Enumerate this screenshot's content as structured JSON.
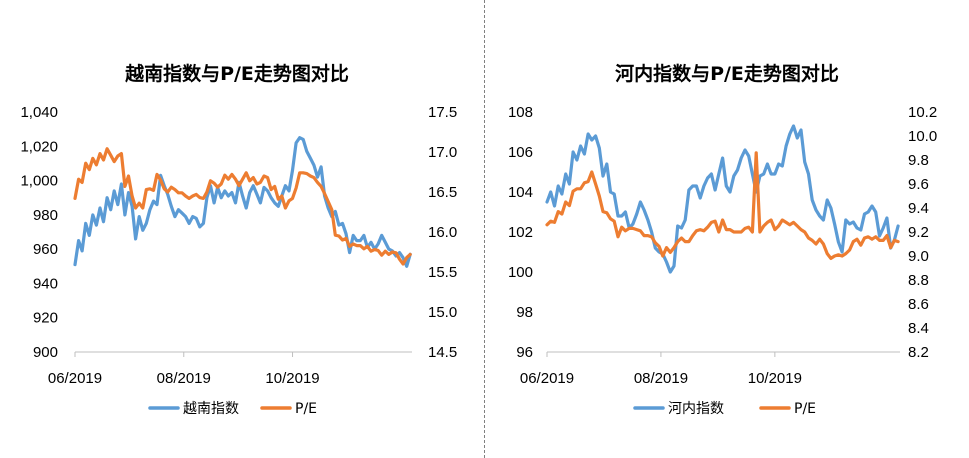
{
  "colors": {
    "index": "#5b9bd5",
    "pe": "#ed7d31",
    "axis": "#bfbfbf"
  },
  "chart_data": [
    {
      "type": "line",
      "title": "越南指数与P/E走势图对比",
      "xlabel": "",
      "ylabel": "",
      "y2label": "",
      "x_tick_labels": [
        "06/2019",
        "08/2019",
        "10/2019"
      ],
      "x_range": [
        "2019-06-01",
        "2019-12-07"
      ],
      "x_ticks": [
        "2019-06-01",
        "2019-08-01",
        "2019-10-01"
      ],
      "ylim": [
        900,
        1040
      ],
      "y_ticks": [
        "900",
        "920",
        "940",
        "960",
        "980",
        "1,000",
        "1,020",
        "1,040"
      ],
      "y2lim": [
        14.5,
        17.5
      ],
      "y2_ticks": [
        "14.5",
        "15.0",
        "15.5",
        "16.0",
        "16.5",
        "17.0",
        "17.5"
      ],
      "legend_position": "bottom",
      "grid": false,
      "series": [
        {
          "name": "越南指数",
          "axis": "left",
          "x": [
            "2019-06-01",
            "2019-06-03",
            "2019-06-05",
            "2019-06-07",
            "2019-06-09",
            "2019-06-11",
            "2019-06-13",
            "2019-06-15",
            "2019-06-17",
            "2019-06-19",
            "2019-06-21",
            "2019-06-23",
            "2019-06-25",
            "2019-06-27",
            "2019-06-29",
            "2019-07-01",
            "2019-07-03",
            "2019-07-05",
            "2019-07-07",
            "2019-07-09",
            "2019-07-11",
            "2019-07-13",
            "2019-07-15",
            "2019-07-17",
            "2019-07-19",
            "2019-07-21",
            "2019-07-23",
            "2019-07-25",
            "2019-07-27",
            "2019-07-29",
            "2019-07-31",
            "2019-08-02",
            "2019-08-04",
            "2019-08-06",
            "2019-08-08",
            "2019-08-10",
            "2019-08-12",
            "2019-08-14",
            "2019-08-16",
            "2019-08-18",
            "2019-08-20",
            "2019-08-22",
            "2019-08-24",
            "2019-08-26",
            "2019-08-28",
            "2019-08-30",
            "2019-09-01",
            "2019-09-03",
            "2019-09-05",
            "2019-09-07",
            "2019-09-09",
            "2019-09-11",
            "2019-09-13",
            "2019-09-15",
            "2019-09-17",
            "2019-09-19",
            "2019-09-21",
            "2019-09-23",
            "2019-09-25",
            "2019-09-27",
            "2019-09-29",
            "2019-10-01",
            "2019-10-03",
            "2019-10-05",
            "2019-10-07",
            "2019-10-09",
            "2019-10-11",
            "2019-10-13",
            "2019-10-15",
            "2019-10-17",
            "2019-10-19",
            "2019-10-21",
            "2019-10-23",
            "2019-10-25",
            "2019-10-27",
            "2019-10-29",
            "2019-10-31",
            "2019-11-02",
            "2019-11-04",
            "2019-11-06",
            "2019-11-08",
            "2019-11-10",
            "2019-11-12",
            "2019-11-14",
            "2019-11-16",
            "2019-11-18",
            "2019-11-20",
            "2019-11-22",
            "2019-11-24",
            "2019-11-26",
            "2019-11-28",
            "2019-11-30",
            "2019-12-02",
            "2019-12-04",
            "2019-12-06"
          ],
          "values": [
            951,
            965,
            959,
            975,
            968,
            980,
            974,
            984,
            976,
            990,
            983,
            994,
            986,
            998,
            980,
            993,
            985,
            966,
            979,
            971,
            975,
            983,
            988,
            986,
            1003,
            997,
            992,
            985,
            979,
            983,
            981,
            979,
            975,
            979,
            978,
            973,
            975,
            990,
            997,
            987,
            996,
            990,
            994,
            991,
            993,
            987,
            999,
            991,
            984,
            993,
            997,
            992,
            987,
            996,
            994,
            990,
            987,
            985,
            991,
            997,
            994,
            1006,
            1022,
            1025,
            1024,
            1017,
            1013,
            1009,
            1002,
            1008,
            991,
            984,
            979,
            982,
            974,
            975,
            969,
            958,
            968,
            965,
            965,
            968,
            961,
            964,
            960,
            963,
            968,
            964,
            960,
            959,
            956,
            958,
            955,
            950,
            957
          ]
        },
        {
          "name": "P/E",
          "axis": "right",
          "x": [
            "2019-06-01",
            "2019-06-03",
            "2019-06-05",
            "2019-06-07",
            "2019-06-09",
            "2019-06-11",
            "2019-06-13",
            "2019-06-15",
            "2019-06-17",
            "2019-06-19",
            "2019-06-21",
            "2019-06-23",
            "2019-06-25",
            "2019-06-27",
            "2019-06-29",
            "2019-07-01",
            "2019-07-03",
            "2019-07-05",
            "2019-07-07",
            "2019-07-09",
            "2019-07-11",
            "2019-07-13",
            "2019-07-15",
            "2019-07-17",
            "2019-07-19",
            "2019-07-21",
            "2019-07-23",
            "2019-07-25",
            "2019-07-27",
            "2019-07-29",
            "2019-07-31",
            "2019-08-02",
            "2019-08-04",
            "2019-08-06",
            "2019-08-08",
            "2019-08-10",
            "2019-08-12",
            "2019-08-14",
            "2019-08-16",
            "2019-08-18",
            "2019-08-20",
            "2019-08-22",
            "2019-08-24",
            "2019-08-26",
            "2019-08-28",
            "2019-08-30",
            "2019-09-01",
            "2019-09-03",
            "2019-09-05",
            "2019-09-07",
            "2019-09-09",
            "2019-09-11",
            "2019-09-13",
            "2019-09-15",
            "2019-09-17",
            "2019-09-19",
            "2019-09-21",
            "2019-09-23",
            "2019-09-25",
            "2019-09-27",
            "2019-09-29",
            "2019-10-01",
            "2019-10-03",
            "2019-10-05",
            "2019-10-07",
            "2019-10-09",
            "2019-10-11",
            "2019-10-13",
            "2019-10-15",
            "2019-10-17",
            "2019-10-19",
            "2019-10-21",
            "2019-10-23",
            "2019-10-25",
            "2019-10-27",
            "2019-10-29",
            "2019-10-31",
            "2019-11-02",
            "2019-11-04",
            "2019-11-06",
            "2019-11-08",
            "2019-11-10",
            "2019-11-12",
            "2019-11-14",
            "2019-11-16",
            "2019-11-18",
            "2019-11-20",
            "2019-11-22",
            "2019-11-24",
            "2019-11-26",
            "2019-11-28",
            "2019-11-30",
            "2019-12-02",
            "2019-12-04",
            "2019-12-06"
          ],
          "values": [
            16.42,
            16.66,
            16.62,
            16.86,
            16.78,
            16.92,
            16.84,
            16.98,
            16.9,
            17.04,
            16.96,
            16.88,
            16.95,
            16.98,
            16.57,
            16.7,
            16.45,
            16.3,
            16.36,
            16.3,
            16.53,
            16.54,
            16.52,
            16.72,
            16.65,
            16.54,
            16.5,
            16.56,
            16.53,
            16.49,
            16.49,
            16.45,
            16.42,
            16.45,
            16.47,
            16.43,
            16.42,
            16.5,
            16.64,
            16.61,
            16.56,
            16.6,
            16.71,
            16.66,
            16.72,
            16.66,
            16.58,
            16.66,
            16.74,
            16.64,
            16.68,
            16.6,
            16.62,
            16.7,
            16.68,
            16.53,
            16.57,
            16.41,
            16.45,
            16.3,
            16.39,
            16.42,
            16.55,
            16.74,
            16.74,
            16.73,
            16.7,
            16.68,
            16.62,
            16.57,
            16.48,
            16.38,
            16.28,
            15.96,
            15.95,
            15.9,
            15.92,
            15.82,
            15.85,
            15.83,
            15.83,
            15.79,
            15.82,
            15.76,
            15.78,
            15.77,
            15.71,
            15.76,
            15.72,
            15.75,
            15.74,
            15.66,
            15.6,
            15.68,
            15.72
          ]
        }
      ]
    },
    {
      "type": "line",
      "title": "河内指数与P/E走势图对比",
      "xlabel": "",
      "ylabel": "",
      "y2label": "",
      "x_tick_labels": [
        "06/2019",
        "08/2019",
        "10/2019"
      ],
      "x_range": [
        "2019-06-01",
        "2019-12-07"
      ],
      "x_ticks": [
        "2019-06-01",
        "2019-08-01",
        "2019-10-01"
      ],
      "ylim": [
        96,
        108
      ],
      "y_ticks": [
        "96",
        "98",
        "100",
        "102",
        "104",
        "106",
        "108"
      ],
      "y2lim": [
        8.2,
        10.2
      ],
      "y2_ticks": [
        "8.2",
        "8.4",
        "8.6",
        "8.8",
        "9.0",
        "9.2",
        "9.4",
        "9.6",
        "9.8",
        "10.0",
        "10.2"
      ],
      "legend_position": "bottom",
      "grid": false,
      "series": [
        {
          "name": "河内指数",
          "axis": "left",
          "x": [
            "2019-06-01",
            "2019-06-03",
            "2019-06-05",
            "2019-06-07",
            "2019-06-09",
            "2019-06-11",
            "2019-06-13",
            "2019-06-15",
            "2019-06-17",
            "2019-06-19",
            "2019-06-21",
            "2019-06-23",
            "2019-06-25",
            "2019-06-27",
            "2019-06-29",
            "2019-07-01",
            "2019-07-03",
            "2019-07-05",
            "2019-07-07",
            "2019-07-09",
            "2019-07-11",
            "2019-07-13",
            "2019-07-15",
            "2019-07-17",
            "2019-07-19",
            "2019-07-21",
            "2019-07-23",
            "2019-07-25",
            "2019-07-27",
            "2019-07-29",
            "2019-07-31",
            "2019-08-02",
            "2019-08-04",
            "2019-08-06",
            "2019-08-08",
            "2019-08-10",
            "2019-08-12",
            "2019-08-14",
            "2019-08-16",
            "2019-08-18",
            "2019-08-20",
            "2019-08-22",
            "2019-08-24",
            "2019-08-26",
            "2019-08-28",
            "2019-08-30",
            "2019-09-01",
            "2019-09-03",
            "2019-09-05",
            "2019-09-07",
            "2019-09-09",
            "2019-09-11",
            "2019-09-13",
            "2019-09-15",
            "2019-09-17",
            "2019-09-19",
            "2019-09-21",
            "2019-09-23",
            "2019-09-25",
            "2019-09-27",
            "2019-09-29",
            "2019-10-01",
            "2019-10-03",
            "2019-10-05",
            "2019-10-07",
            "2019-10-09",
            "2019-10-11",
            "2019-10-13",
            "2019-10-15",
            "2019-10-17",
            "2019-10-19",
            "2019-10-21",
            "2019-10-23",
            "2019-10-25",
            "2019-10-27",
            "2019-10-29",
            "2019-10-31",
            "2019-11-02",
            "2019-11-04",
            "2019-11-06",
            "2019-11-08",
            "2019-11-10",
            "2019-11-12",
            "2019-11-14",
            "2019-11-16",
            "2019-11-18",
            "2019-11-20",
            "2019-11-22",
            "2019-11-24",
            "2019-11-26",
            "2019-11-28",
            "2019-11-30",
            "2019-12-02",
            "2019-12-04",
            "2019-12-06"
          ],
          "values": [
            103.5,
            104.0,
            103.3,
            104.3,
            103.9,
            104.9,
            104.4,
            106.0,
            105.6,
            106.3,
            105.9,
            106.9,
            106.6,
            106.8,
            106.2,
            104.8,
            105.4,
            104.0,
            103.9,
            102.8,
            102.8,
            103.0,
            102.2,
            102.4,
            102.9,
            103.5,
            103.1,
            102.6,
            102.0,
            101.2,
            101.0,
            100.9,
            100.5,
            100.0,
            100.3,
            102.3,
            102.2,
            102.6,
            104.1,
            104.3,
            104.3,
            103.7,
            104.3,
            104.7,
            104.9,
            104.1,
            104.9,
            105.7,
            104.3,
            104.0,
            104.8,
            105.1,
            105.7,
            106.1,
            105.8,
            104.9,
            104.0,
            104.8,
            104.9,
            105.4,
            104.9,
            104.9,
            105.4,
            105.3,
            106.3,
            106.9,
            107.3,
            106.7,
            107.1,
            105.5,
            104.9,
            103.6,
            103.1,
            102.8,
            102.6,
            103.6,
            103.2,
            102.4,
            101.5,
            101.0,
            102.6,
            102.4,
            102.5,
            102.2,
            102.1,
            102.9,
            103.0,
            103.3,
            103.0,
            101.8,
            102.2,
            102.7,
            101.2,
            101.6,
            102.3
          ]
        },
        {
          "name": "P/E",
          "axis": "right",
          "x": [
            "2019-06-01",
            "2019-06-03",
            "2019-06-05",
            "2019-06-07",
            "2019-06-09",
            "2019-06-11",
            "2019-06-13",
            "2019-06-15",
            "2019-06-17",
            "2019-06-19",
            "2019-06-21",
            "2019-06-23",
            "2019-06-25",
            "2019-06-27",
            "2019-06-29",
            "2019-07-01",
            "2019-07-03",
            "2019-07-05",
            "2019-07-07",
            "2019-07-09",
            "2019-07-11",
            "2019-07-13",
            "2019-07-15",
            "2019-07-17",
            "2019-07-19",
            "2019-07-21",
            "2019-07-23",
            "2019-07-25",
            "2019-07-27",
            "2019-07-29",
            "2019-07-31",
            "2019-08-02",
            "2019-08-04",
            "2019-08-06",
            "2019-08-08",
            "2019-08-10",
            "2019-08-12",
            "2019-08-14",
            "2019-08-16",
            "2019-08-18",
            "2019-08-20",
            "2019-08-22",
            "2019-08-24",
            "2019-08-26",
            "2019-08-28",
            "2019-08-30",
            "2019-09-01",
            "2019-09-03",
            "2019-09-05",
            "2019-09-07",
            "2019-09-09",
            "2019-09-11",
            "2019-09-13",
            "2019-09-15",
            "2019-09-17",
            "2019-09-19",
            "2019-09-21",
            "2019-09-23",
            "2019-09-25",
            "2019-09-27",
            "2019-09-29",
            "2019-10-01",
            "2019-10-03",
            "2019-10-05",
            "2019-10-07",
            "2019-10-09",
            "2019-10-11",
            "2019-10-13",
            "2019-10-15",
            "2019-10-17",
            "2019-10-19",
            "2019-10-21",
            "2019-10-23",
            "2019-10-25",
            "2019-10-27",
            "2019-10-29",
            "2019-10-31",
            "2019-11-02",
            "2019-11-04",
            "2019-11-06",
            "2019-11-08",
            "2019-11-10",
            "2019-11-12",
            "2019-11-14",
            "2019-11-16",
            "2019-11-18",
            "2019-11-20",
            "2019-11-22",
            "2019-11-24",
            "2019-11-26",
            "2019-11-28",
            "2019-11-30",
            "2019-12-02",
            "2019-12-04",
            "2019-12-06"
          ],
          "values": [
            9.26,
            9.29,
            9.28,
            9.37,
            9.35,
            9.45,
            9.42,
            9.54,
            9.56,
            9.56,
            9.61,
            9.62,
            9.7,
            9.6,
            9.5,
            9.37,
            9.36,
            9.31,
            9.29,
            9.16,
            9.24,
            9.21,
            9.23,
            9.23,
            9.22,
            9.21,
            9.17,
            9.17,
            9.16,
            9.11,
            9.08,
            9.0,
            9.07,
            9.03,
            9.07,
            9.12,
            9.15,
            9.12,
            9.12,
            9.17,
            9.21,
            9.22,
            9.21,
            9.24,
            9.28,
            9.29,
            9.2,
            9.3,
            9.22,
            9.22,
            9.2,
            9.2,
            9.2,
            9.23,
            9.24,
            9.2,
            9.86,
            9.2,
            9.25,
            9.28,
            9.3,
            9.22,
            9.25,
            9.3,
            9.28,
            9.26,
            9.28,
            9.25,
            9.22,
            9.2,
            9.15,
            9.13,
            9.1,
            9.14,
            9.1,
            9.02,
            8.98,
            9.0,
            9.01,
            9.0,
            9.02,
            9.05,
            9.12,
            9.14,
            9.09,
            9.15,
            9.16,
            9.14,
            9.16,
            9.13,
            9.13,
            9.17,
            9.07,
            9.13,
            9.12
          ]
        }
      ]
    }
  ]
}
